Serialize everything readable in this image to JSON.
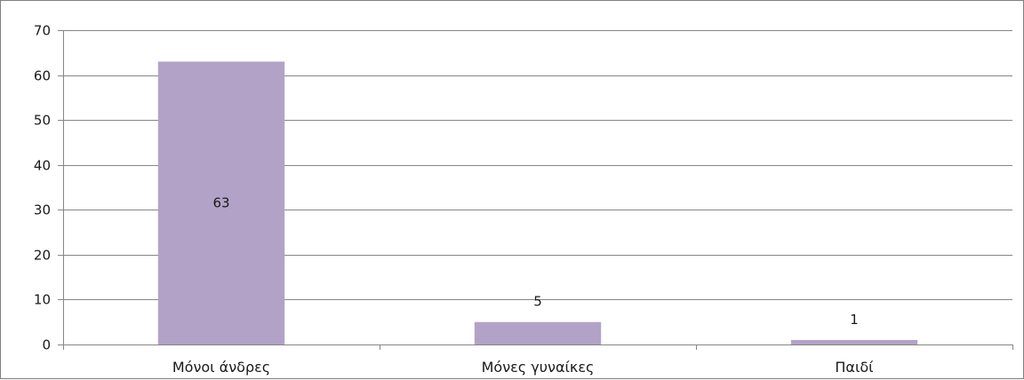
{
  "chart_data": {
    "type": "bar",
    "categories": [
      "Μόνοι άνδρες",
      "Μόνες γυναίκες",
      "Παιδί"
    ],
    "values": [
      63,
      5,
      1
    ],
    "data_labels": [
      "63",
      "5",
      "1"
    ],
    "title": "",
    "xlabel": "",
    "ylabel": "",
    "ylim": [
      0,
      70
    ],
    "yticks": [
      0,
      10,
      20,
      30,
      40,
      50,
      60,
      70
    ],
    "grid": true,
    "legend": "none",
    "bar_color": "#b3a2c7",
    "grid_color": "#868686"
  }
}
